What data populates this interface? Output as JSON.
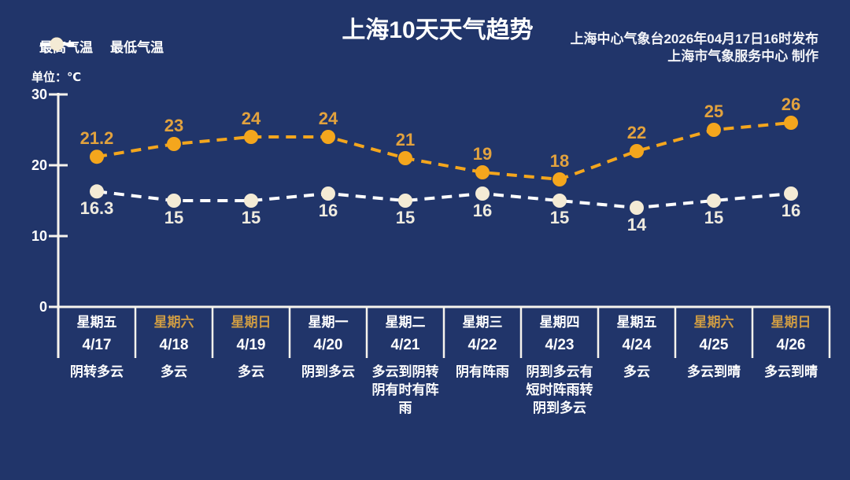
{
  "page": {
    "title": "上海10天天气趋势",
    "source_line1": "上海中心气象台2026年04月17日16时发布",
    "source_line2": "上海市气象服务中心  制作",
    "unit_label": "单位：℃"
  },
  "legend": {
    "high_label": "最高气温",
    "low_label": "最低气温"
  },
  "colors": {
    "background": "#21356A",
    "axis": "#F7F4ED",
    "high_series": "#F4A61D",
    "high_value_label": "#E2A23E",
    "low_line": "#FFFFFF",
    "low_marker": "#F4EBD5",
    "low_value_label": "#EFEBDF",
    "weekday_text": "#FFFFFF",
    "weekend_text": "#CD9B44"
  },
  "chart_data": {
    "type": "line",
    "title": "上海10天天气趋势",
    "unit": "℃",
    "ylim": [
      0,
      30
    ],
    "yticks": [
      0,
      10,
      20,
      30
    ],
    "grid": "zero-baseline-only",
    "legend_position": "top-left",
    "categories": [
      "4/17",
      "4/18",
      "4/19",
      "4/20",
      "4/21",
      "4/22",
      "4/23",
      "4/24",
      "4/25",
      "4/26"
    ],
    "series": [
      {
        "name": "最高气温",
        "values": [
          21.2,
          23,
          24,
          24,
          21,
          19,
          18,
          22,
          25,
          26
        ]
      },
      {
        "name": "最低气温",
        "values": [
          16.3,
          15,
          15,
          16,
          15,
          16,
          15,
          14,
          15,
          16
        ]
      }
    ]
  },
  "days": [
    {
      "weekday": "星期五",
      "date": "4/17",
      "weather": "阴转多云",
      "weekend": false
    },
    {
      "weekday": "星期六",
      "date": "4/18",
      "weather": "多云",
      "weekend": true
    },
    {
      "weekday": "星期日",
      "date": "4/19",
      "weather": "多云",
      "weekend": true
    },
    {
      "weekday": "星期一",
      "date": "4/20",
      "weather": "阴到多云",
      "weekend": false
    },
    {
      "weekday": "星期二",
      "date": "4/21",
      "weather": "多云到阴转阴有时有阵雨",
      "weekend": false
    },
    {
      "weekday": "星期三",
      "date": "4/22",
      "weather": "阴有阵雨",
      "weekend": false
    },
    {
      "weekday": "星期四",
      "date": "4/23",
      "weather": "阴到多云有短时阵雨转阴到多云",
      "weekend": false
    },
    {
      "weekday": "星期五",
      "date": "4/24",
      "weather": "多云",
      "weekend": false
    },
    {
      "weekday": "星期六",
      "date": "4/25",
      "weather": "多云到晴",
      "weekend": true
    },
    {
      "weekday": "星期日",
      "date": "4/26",
      "weather": "多云到晴",
      "weekend": true
    }
  ]
}
